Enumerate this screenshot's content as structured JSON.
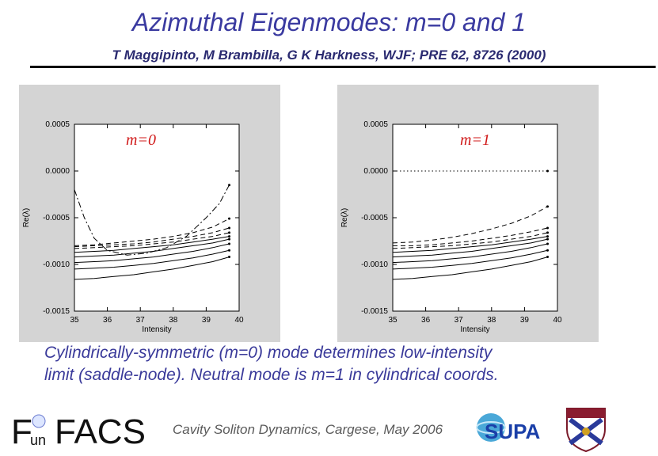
{
  "header": {
    "title": "Azimuthal Eigenmodes: m=0 and 1",
    "authors": "T Maggipinto, M Brambilla, G K Harkness,  WJF; PRE 62, 8726 (2000)"
  },
  "chart_data": [
    {
      "type": "line",
      "panel_label": "m=0",
      "xlabel": "Intensity",
      "ylabel": "Re(λ)",
      "xlim": [
        35,
        40
      ],
      "ylim": [
        -0.0015,
        0.0005
      ],
      "xticks": [
        "35",
        "36",
        "37",
        "38",
        "39",
        "40"
      ],
      "yticks": [
        "0.0005",
        "0.0000",
        "-0.0005",
        "-0.0010",
        "-0.0015"
      ],
      "series": [
        {
          "style": "dashed",
          "x": [
            35.0,
            35.6,
            36.2,
            36.8,
            37.4,
            38.0,
            38.6,
            39.2,
            39.7
          ],
          "y": [
            -0.0008,
            -0.00079,
            -0.00077,
            -0.00075,
            -0.00073,
            -0.0007,
            -0.00066,
            -0.0006,
            -0.00051
          ]
        },
        {
          "style": "dashed",
          "x": [
            35.0,
            35.6,
            36.2,
            36.8,
            37.4,
            38.0,
            38.6,
            39.2,
            39.7
          ],
          "y": [
            -0.00081,
            -0.0008,
            -0.00079,
            -0.00078,
            -0.00076,
            -0.00073,
            -0.0007,
            -0.00066,
            -0.00061
          ]
        },
        {
          "style": "dashed",
          "x": [
            35.0,
            35.6,
            36.2,
            36.8,
            37.4,
            38.0,
            38.6,
            39.2,
            39.7
          ],
          "y": [
            -0.00083,
            -0.00082,
            -0.00081,
            -0.0008,
            -0.00078,
            -0.00076,
            -0.00073,
            -0.0007,
            -0.00066
          ]
        },
        {
          "style": "solid",
          "x": [
            35.0,
            35.6,
            36.2,
            36.8,
            37.4,
            38.0,
            38.6,
            39.2,
            39.7
          ],
          "y": [
            -0.00087,
            -0.00086,
            -0.00085,
            -0.00083,
            -0.00081,
            -0.00079,
            -0.00076,
            -0.00073,
            -0.0007
          ]
        },
        {
          "style": "solid",
          "x": [
            35.0,
            35.6,
            36.2,
            36.8,
            37.4,
            38.0,
            38.6,
            39.2,
            39.7
          ],
          "y": [
            -0.00092,
            -0.00091,
            -0.0009,
            -0.00088,
            -0.00086,
            -0.00083,
            -0.0008,
            -0.00077,
            -0.00073
          ]
        },
        {
          "style": "solid",
          "x": [
            35.0,
            35.6,
            36.2,
            36.8,
            37.4,
            38.0,
            38.6,
            39.2,
            39.7
          ],
          "y": [
            -0.00098,
            -0.00097,
            -0.00096,
            -0.00094,
            -0.00092,
            -0.00089,
            -0.00086,
            -0.00082,
            -0.00078
          ]
        },
        {
          "style": "solid",
          "x": [
            35.0,
            35.6,
            36.2,
            36.8,
            37.4,
            38.0,
            38.6,
            39.2,
            39.7
          ],
          "y": [
            -0.00105,
            -0.00104,
            -0.00103,
            -0.00101,
            -0.00099,
            -0.00096,
            -0.00093,
            -0.00089,
            -0.00085
          ]
        },
        {
          "style": "solid",
          "x": [
            35.0,
            35.6,
            36.2,
            36.8,
            37.4,
            38.0,
            38.6,
            39.2,
            39.7
          ],
          "y": [
            -0.00116,
            -0.00115,
            -0.00113,
            -0.00111,
            -0.00108,
            -0.00105,
            -0.00101,
            -0.00097,
            -0.00092
          ]
        },
        {
          "style": "dashdot",
          "x": [
            35.0,
            35.3,
            35.6,
            36.0,
            36.6,
            37.2,
            37.8,
            38.4,
            39.0,
            39.4,
            39.7
          ],
          "y": [
            -0.0002,
            -0.0005,
            -0.00072,
            -0.00085,
            -0.0009,
            -0.00088,
            -0.00082,
            -0.0007,
            -0.0005,
            -0.00035,
            -0.00015
          ]
        }
      ]
    },
    {
      "type": "line",
      "panel_label": "m=1",
      "xlabel": "Intensity",
      "ylabel": "Re(λ)",
      "xlim": [
        35,
        40
      ],
      "ylim": [
        -0.0015,
        0.0005
      ],
      "xticks": [
        "35",
        "36",
        "37",
        "38",
        "39",
        "40"
      ],
      "yticks": [
        "0.0005",
        "0.0000",
        "-0.0005",
        "-0.0010",
        "-0.0015"
      ],
      "series": [
        {
          "style": "dotted",
          "x": [
            35.0,
            35.6,
            36.2,
            36.8,
            37.4,
            38.0,
            38.6,
            39.2,
            39.7
          ],
          "y": [
            0.0,
            0.0,
            0.0,
            0.0,
            0.0,
            0.0,
            0.0,
            0.0,
            0.0
          ]
        },
        {
          "style": "dashed",
          "x": [
            35.0,
            35.6,
            36.2,
            36.8,
            37.4,
            38.0,
            38.6,
            39.2,
            39.7
          ],
          "y": [
            -0.00077,
            -0.00076,
            -0.00074,
            -0.00071,
            -0.00067,
            -0.00062,
            -0.00056,
            -0.00048,
            -0.00038
          ]
        },
        {
          "style": "dashed",
          "x": [
            35.0,
            35.6,
            36.2,
            36.8,
            37.4,
            38.0,
            38.6,
            39.2,
            39.7
          ],
          "y": [
            -0.0008,
            -0.0008,
            -0.00079,
            -0.00077,
            -0.00075,
            -0.00072,
            -0.00069,
            -0.00065,
            -0.00061
          ]
        },
        {
          "style": "dashed",
          "x": [
            35.0,
            35.6,
            36.2,
            36.8,
            37.4,
            38.0,
            38.6,
            39.2,
            39.7
          ],
          "y": [
            -0.00083,
            -0.00082,
            -0.00081,
            -0.0008,
            -0.00078,
            -0.00076,
            -0.00073,
            -0.0007,
            -0.00066
          ]
        },
        {
          "style": "solid",
          "x": [
            35.0,
            35.6,
            36.2,
            36.8,
            37.4,
            38.0,
            38.6,
            39.2,
            39.7
          ],
          "y": [
            -0.00087,
            -0.00086,
            -0.00085,
            -0.00083,
            -0.00081,
            -0.00079,
            -0.00076,
            -0.00073,
            -0.0007
          ]
        },
        {
          "style": "solid",
          "x": [
            35.0,
            35.6,
            36.2,
            36.8,
            37.4,
            38.0,
            38.6,
            39.2,
            39.7
          ],
          "y": [
            -0.00092,
            -0.00091,
            -0.0009,
            -0.00088,
            -0.00086,
            -0.00083,
            -0.0008,
            -0.00077,
            -0.00073
          ]
        },
        {
          "style": "solid",
          "x": [
            35.0,
            35.6,
            36.2,
            36.8,
            37.4,
            38.0,
            38.6,
            39.2,
            39.7
          ],
          "y": [
            -0.00098,
            -0.00097,
            -0.00096,
            -0.00094,
            -0.00092,
            -0.00089,
            -0.00086,
            -0.00082,
            -0.00078
          ]
        },
        {
          "style": "solid",
          "x": [
            35.0,
            35.6,
            36.2,
            36.8,
            37.4,
            38.0,
            38.6,
            39.2,
            39.7
          ],
          "y": [
            -0.00105,
            -0.00104,
            -0.00103,
            -0.00101,
            -0.00099,
            -0.00096,
            -0.00093,
            -0.00089,
            -0.00085
          ]
        },
        {
          "style": "solid",
          "x": [
            35.0,
            35.6,
            36.2,
            36.8,
            37.4,
            38.0,
            38.6,
            39.2,
            39.7
          ],
          "y": [
            -0.00116,
            -0.00115,
            -0.00113,
            -0.00111,
            -0.00108,
            -0.00105,
            -0.00101,
            -0.00097,
            -0.00092
          ]
        }
      ]
    }
  ],
  "caption": {
    "line1": "Cylindrically-symmetric (m=0) mode determines low-intensity",
    "line2": "limit (saddle-node). Neutral mode is m=1 in cylindrical coords."
  },
  "footer": {
    "conference": "Cavity Soliton Dynamics, Cargese, May 2006",
    "logo_funfacs_f": "F",
    "logo_funfacs_un": "un",
    "logo_funfacs_facs": "FACS",
    "logo_supa": "SUPA"
  },
  "colors": {
    "title": "#3a3aa0",
    "caption": "#3a3a9a",
    "panel_bg": "#d4d4d4",
    "plot_bg": "#ffffff",
    "supa_blue": "#1a3fa8"
  }
}
